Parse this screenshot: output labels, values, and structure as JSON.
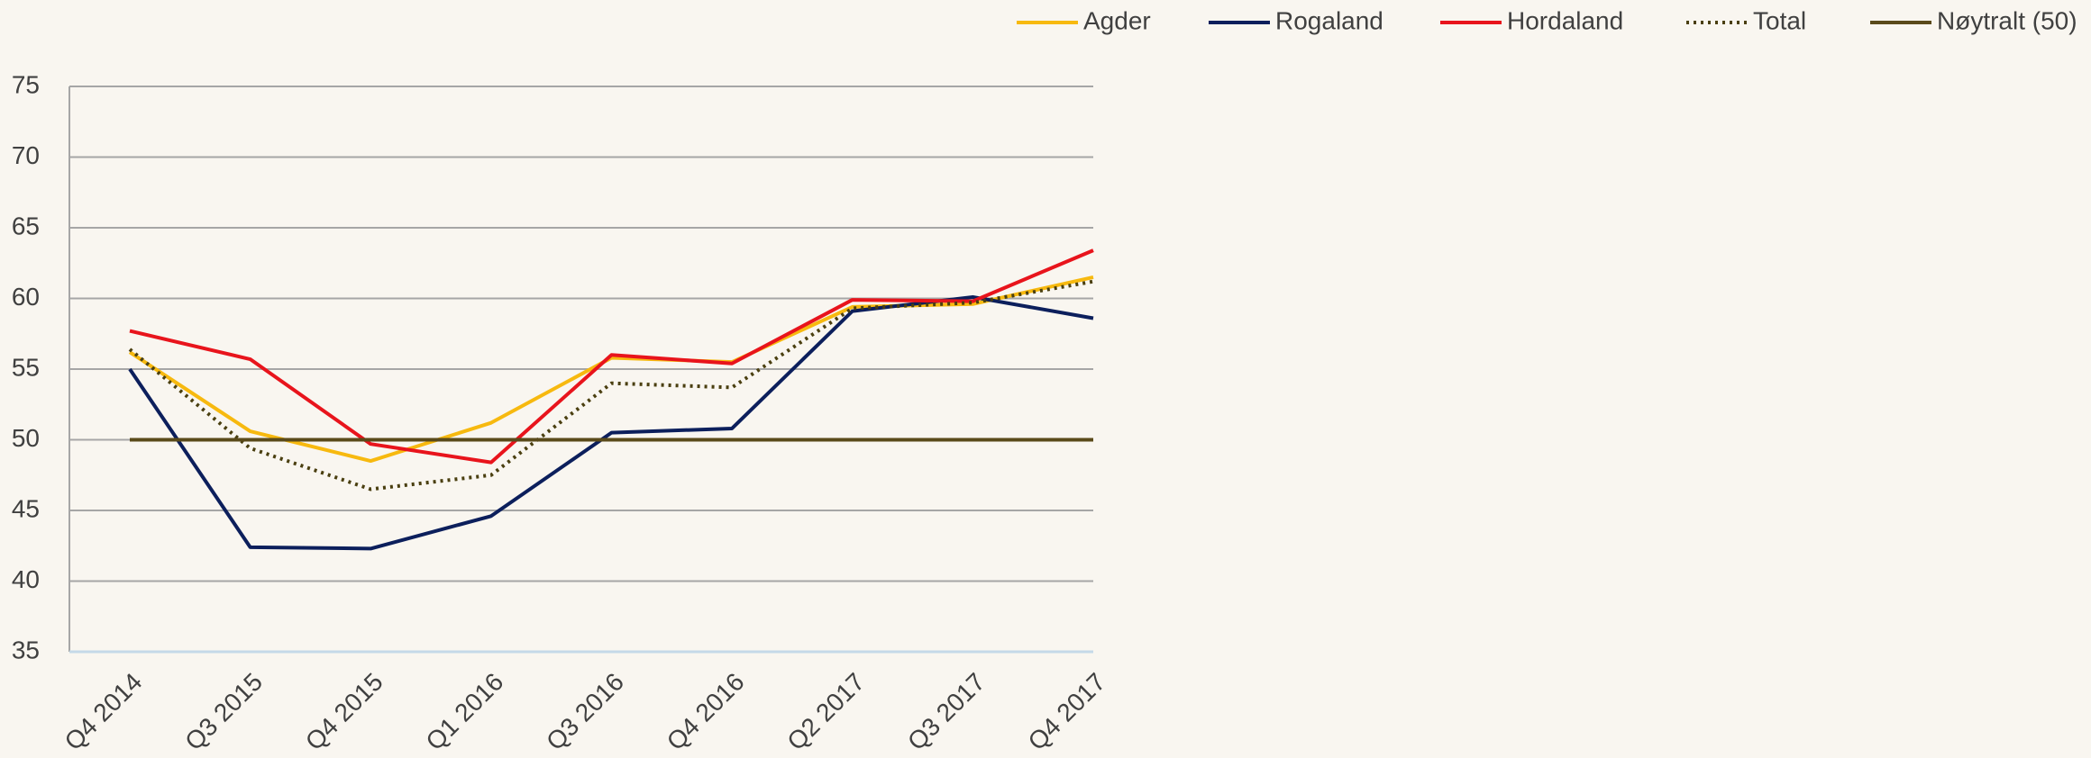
{
  "chart_data": {
    "type": "line",
    "categories": [
      "Q4 2014",
      "Q3 2015",
      "Q4 2015",
      "Q1 2016",
      "Q3 2016",
      "Q4 2016",
      "Q2 2017",
      "Q3 2017",
      "Q4 2017"
    ],
    "series": [
      {
        "name": "Agder",
        "color": "#f7b90f",
        "values": [
          56.2,
          50.6,
          48.5,
          51.2,
          55.8,
          55.5,
          59.4,
          59.6,
          61.5
        ]
      },
      {
        "name": "Rogaland",
        "color": "#0c1f5c",
        "values": [
          55,
          42.4,
          42.3,
          44.6,
          50.5,
          50.8,
          59.1,
          60.1,
          58.6
        ]
      },
      {
        "name": "Hordaland",
        "color": "#e8141c",
        "values": [
          57.7,
          55.7,
          49.7,
          48.4,
          56,
          55.4,
          59.9,
          59.8,
          63.4
        ]
      },
      {
        "name": "Total",
        "color": "#4a3f10",
        "dash": "dotted",
        "values": [
          56.4,
          49.4,
          46.5,
          47.5,
          54,
          53.7,
          59.3,
          59.7,
          61.2
        ]
      },
      {
        "name": "Nøytralt (50)",
        "color": "#5a4a1a",
        "values": [
          50,
          50,
          50,
          50,
          50,
          50,
          50,
          50,
          50
        ]
      }
    ],
    "ylim": [
      35,
      75
    ],
    "yticks": [
      35,
      40,
      45,
      50,
      55,
      60,
      65,
      70,
      75
    ],
    "grid": true,
    "legend": "top"
  }
}
